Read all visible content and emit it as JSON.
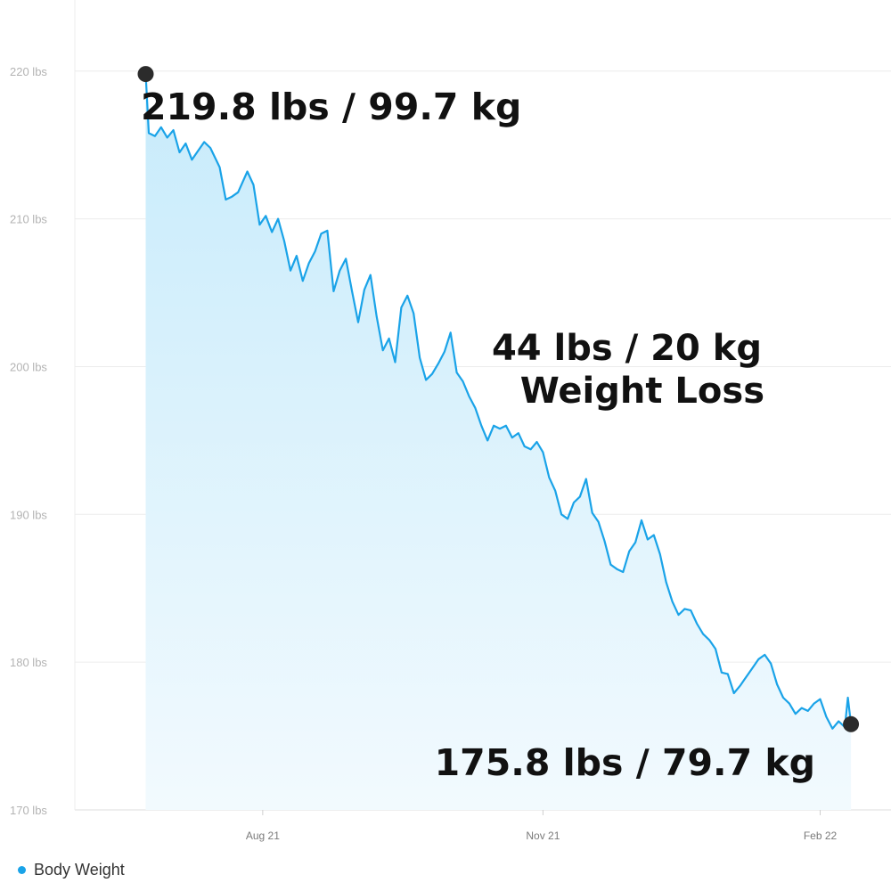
{
  "chart_data": {
    "type": "area",
    "series": [
      {
        "name": "Body Weight",
        "color": "#1aa3e8",
        "points": [
          [
            "2021-07-01",
            219.8
          ],
          [
            "2021-07-02",
            215.8
          ],
          [
            "2021-07-04",
            215.6
          ],
          [
            "2021-07-06",
            216.2
          ],
          [
            "2021-07-08",
            215.5
          ],
          [
            "2021-07-10",
            216.0
          ],
          [
            "2021-07-12",
            214.5
          ],
          [
            "2021-07-14",
            215.1
          ],
          [
            "2021-07-16",
            214.0
          ],
          [
            "2021-07-18",
            214.6
          ],
          [
            "2021-07-20",
            215.2
          ],
          [
            "2021-07-22",
            214.8
          ],
          [
            "2021-07-25",
            213.5
          ],
          [
            "2021-07-27",
            211.3
          ],
          [
            "2021-07-29",
            211.5
          ],
          [
            "2021-07-31",
            211.8
          ],
          [
            "2021-08-03",
            213.2
          ],
          [
            "2021-08-05",
            212.3
          ],
          [
            "2021-08-07",
            209.6
          ],
          [
            "2021-08-09",
            210.2
          ],
          [
            "2021-08-11",
            209.1
          ],
          [
            "2021-08-13",
            210.0
          ],
          [
            "2021-08-15",
            208.5
          ],
          [
            "2021-08-17",
            206.5
          ],
          [
            "2021-08-19",
            207.5
          ],
          [
            "2021-08-21",
            205.8
          ],
          [
            "2021-08-23",
            207.0
          ],
          [
            "2021-08-25",
            207.8
          ],
          [
            "2021-08-27",
            209.0
          ],
          [
            "2021-08-29",
            209.2
          ],
          [
            "2021-08-31",
            205.1
          ],
          [
            "2021-09-02",
            206.5
          ],
          [
            "2021-09-04",
            207.3
          ],
          [
            "2021-09-06",
            205.1
          ],
          [
            "2021-09-08",
            203.0
          ],
          [
            "2021-09-10",
            205.2
          ],
          [
            "2021-09-12",
            206.2
          ],
          [
            "2021-09-14",
            203.4
          ],
          [
            "2021-09-16",
            201.1
          ],
          [
            "2021-09-18",
            201.9
          ],
          [
            "2021-09-20",
            200.3
          ],
          [
            "2021-09-22",
            204.0
          ],
          [
            "2021-09-24",
            204.8
          ],
          [
            "2021-09-26",
            203.6
          ],
          [
            "2021-09-28",
            200.6
          ],
          [
            "2021-09-30",
            199.1
          ],
          [
            "2021-10-02",
            199.5
          ],
          [
            "2021-10-04",
            200.2
          ],
          [
            "2021-10-06",
            201.0
          ],
          [
            "2021-10-08",
            202.3
          ],
          [
            "2021-10-10",
            199.6
          ],
          [
            "2021-10-12",
            199.0
          ],
          [
            "2021-10-14",
            198.0
          ],
          [
            "2021-10-16",
            197.2
          ],
          [
            "2021-10-18",
            196.0
          ],
          [
            "2021-10-20",
            195.0
          ],
          [
            "2021-10-22",
            196.0
          ],
          [
            "2021-10-24",
            195.8
          ],
          [
            "2021-10-26",
            196.0
          ],
          [
            "2021-10-28",
            195.2
          ],
          [
            "2021-10-30",
            195.5
          ],
          [
            "2021-11-01",
            194.6
          ],
          [
            "2021-11-03",
            194.4
          ],
          [
            "2021-11-05",
            194.9
          ],
          [
            "2021-11-07",
            194.2
          ],
          [
            "2021-11-09",
            192.5
          ],
          [
            "2021-11-11",
            191.6
          ],
          [
            "2021-11-13",
            190.0
          ],
          [
            "2021-11-15",
            189.7
          ],
          [
            "2021-11-17",
            190.8
          ],
          [
            "2021-11-19",
            191.2
          ],
          [
            "2021-11-21",
            192.4
          ],
          [
            "2021-11-23",
            190.1
          ],
          [
            "2021-11-25",
            189.5
          ],
          [
            "2021-11-27",
            188.2
          ],
          [
            "2021-11-29",
            186.6
          ],
          [
            "2021-12-01",
            186.3
          ],
          [
            "2021-12-03",
            186.1
          ],
          [
            "2021-12-05",
            187.5
          ],
          [
            "2021-12-07",
            188.1
          ],
          [
            "2021-12-09",
            189.6
          ],
          [
            "2021-12-11",
            188.3
          ],
          [
            "2021-12-13",
            188.6
          ],
          [
            "2021-12-15",
            187.3
          ],
          [
            "2021-12-17",
            185.4
          ],
          [
            "2021-12-19",
            184.1
          ],
          [
            "2021-12-21",
            183.2
          ],
          [
            "2021-12-23",
            183.6
          ],
          [
            "2021-12-25",
            183.5
          ],
          [
            "2021-12-27",
            182.6
          ],
          [
            "2021-12-29",
            181.9
          ],
          [
            "2021-12-31",
            181.5
          ],
          [
            "2022-01-02",
            180.9
          ],
          [
            "2022-01-04",
            179.3
          ],
          [
            "2022-01-06",
            179.2
          ],
          [
            "2022-01-08",
            177.9
          ],
          [
            "2022-01-10",
            178.4
          ],
          [
            "2022-01-12",
            179.0
          ],
          [
            "2022-01-14",
            179.6
          ],
          [
            "2022-01-16",
            180.2
          ],
          [
            "2022-01-18",
            180.5
          ],
          [
            "2022-01-20",
            179.9
          ],
          [
            "2022-01-22",
            178.5
          ],
          [
            "2022-01-24",
            177.6
          ],
          [
            "2022-01-26",
            177.2
          ],
          [
            "2022-01-28",
            176.5
          ],
          [
            "2022-01-30",
            176.9
          ],
          [
            "2022-02-01",
            176.7
          ],
          [
            "2022-02-03",
            177.2
          ],
          [
            "2022-02-05",
            177.5
          ],
          [
            "2022-02-07",
            176.3
          ],
          [
            "2022-02-09",
            175.5
          ],
          [
            "2022-02-11",
            176.0
          ],
          [
            "2022-02-13",
            175.6
          ],
          [
            "2022-02-14",
            177.6
          ],
          [
            "2022-02-15",
            175.8
          ]
        ]
      }
    ],
    "x_ticks": [
      {
        "label": "Aug 21",
        "date": "2021-08-08"
      },
      {
        "label": "Nov 21",
        "date": "2021-11-07"
      },
      {
        "label": "Feb 22",
        "date": "2022-02-05"
      }
    ],
    "y_ticks": [
      220,
      210,
      200,
      190,
      180,
      170
    ],
    "y_unit": "lbs",
    "ylim": [
      170,
      223
    ],
    "xlim": [
      "2021-06-08",
      "2022-02-28"
    ],
    "grid": true,
    "legend": "bottom-left",
    "markers": [
      {
        "date": "2021-07-01",
        "value": 219.8
      },
      {
        "date": "2022-02-15",
        "value": 175.8
      }
    ],
    "annotations": {
      "start_label": "219.8 lbs / 99.7 kg",
      "end_label": "175.8 lbs / 79.7 kg",
      "loss_line1": "44 lbs / 20 kg",
      "loss_line2": "Weight Loss"
    }
  }
}
